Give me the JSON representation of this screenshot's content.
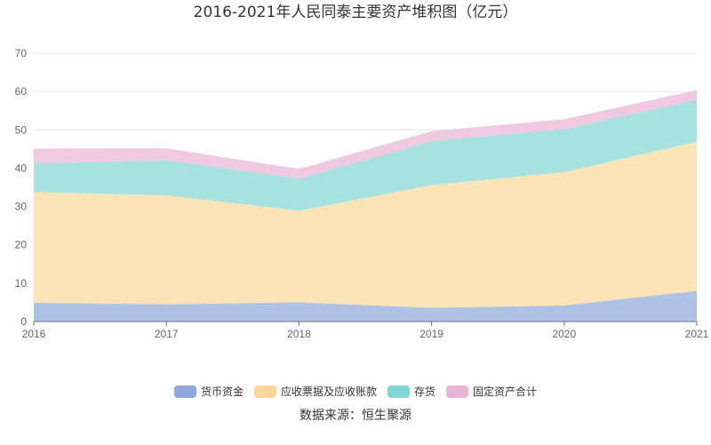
{
  "chart_data": {
    "type": "area",
    "stacked": true,
    "title": "2016-2021年人民同泰主要资产堆积图（亿元）",
    "x": [
      "2016",
      "2017",
      "2018",
      "2019",
      "2020",
      "2021"
    ],
    "ylim": [
      0,
      70
    ],
    "yticks": [
      0,
      10,
      20,
      30,
      40,
      50,
      60,
      70
    ],
    "grid": true,
    "legend_position": "bottom",
    "series": [
      {
        "name": "货币资金",
        "color": "#aec2e6",
        "legend_color": "#8fa8dc",
        "values": [
          4.9,
          4.5,
          5.0,
          3.6,
          4.2,
          8.0
        ]
      },
      {
        "name": "应收票据及应收账款",
        "color": "#fde4b6",
        "legend_color": "#fbd79d",
        "values": [
          28.9,
          28.4,
          23.9,
          32.0,
          34.8,
          38.9
        ]
      },
      {
        "name": "存货",
        "color": "#a7e2e0",
        "legend_color": "#84d6d4",
        "values": [
          7.5,
          9.2,
          8.4,
          11.5,
          11.2,
          11.0
        ]
      },
      {
        "name": "固定资产合计",
        "color": "#efc9e1",
        "legend_color": "#e7b5d5",
        "values": [
          3.8,
          3.1,
          2.5,
          2.6,
          2.6,
          2.5
        ]
      }
    ],
    "source_note": "数据来源：恒生聚源"
  }
}
